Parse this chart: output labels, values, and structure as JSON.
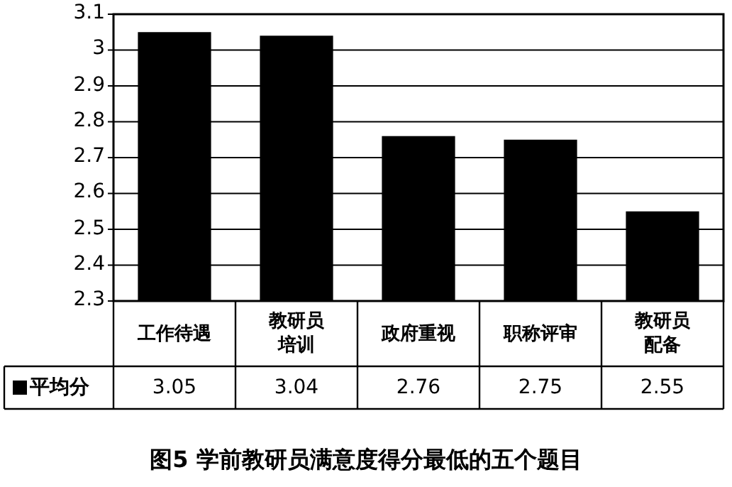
{
  "chart_data": {
    "type": "bar",
    "title": "图5  学前教研员满意度得分最低的五个题目",
    "categories": [
      "工作待遇",
      "教研员培训",
      "政府重视",
      "职称评审",
      "教研员配备"
    ],
    "series": [
      {
        "name": "平均分",
        "color": "#000000",
        "values": [
          3.05,
          3.04,
          2.76,
          2.75,
          2.55
        ]
      }
    ],
    "ylim": [
      2.3,
      3.1
    ],
    "yticks": [
      2.3,
      2.4,
      2.5,
      2.6,
      2.7,
      2.8,
      2.9,
      3,
      3.1
    ],
    "grid": "y",
    "legend": "bottom",
    "data_labels": true
  }
}
